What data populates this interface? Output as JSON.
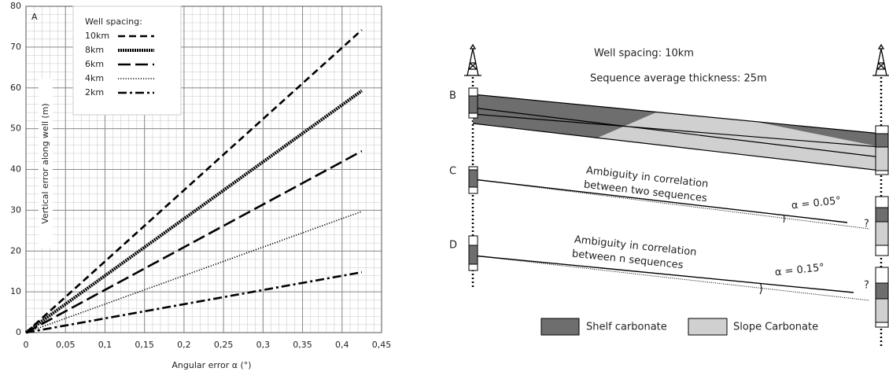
{
  "chart_data": {
    "type": "line",
    "panel_label": "A",
    "x_label": "Angular error  α (°)",
    "y_label": "Vertical error  along well (m)",
    "legend_title": "Well spacing:",
    "x": [
      0,
      0.425
    ],
    "series": [
      {
        "name": "10km",
        "color": "#000000",
        "values": [
          0,
          74.2
        ]
      },
      {
        "name": "8km",
        "color": "#000000",
        "values": [
          0,
          59.3
        ]
      },
      {
        "name": "6km",
        "color": "#000000",
        "values": [
          0,
          44.5
        ]
      },
      {
        "name": "4km",
        "color": "#000000",
        "values": [
          0,
          29.7
        ]
      },
      {
        "name": "2km",
        "color": "#000000",
        "values": [
          0,
          14.8
        ]
      }
    ],
    "xlim": [
      0,
      0.45
    ],
    "xticks": [
      0,
      {
        "value": 0.05,
        "label": "0,05"
      },
      {
        "value": 0.1,
        "label": "0,1"
      },
      {
        "value": 0.15,
        "label": "0,15"
      },
      {
        "value": 0.2,
        "label": "0,2"
      },
      {
        "value": 0.25,
        "label": "0,25"
      },
      {
        "value": 0.3,
        "label": "0,3"
      },
      {
        "value": 0.35,
        "label": "0,35"
      },
      {
        "value": 0.4,
        "label": "0,4"
      },
      {
        "value": 0.45,
        "label": "0,45"
      }
    ],
    "ylim": [
      0,
      80
    ],
    "yticks": [
      0,
      10,
      20,
      30,
      40,
      50,
      60,
      70,
      80
    ],
    "grid": true
  },
  "diagram": {
    "well_spacing": "Well spacing:  10km",
    "thickness": "Sequence average thickness:  25m",
    "panels": [
      {
        "label": "B"
      },
      {
        "label": "C",
        "annotation": [
          "Ambiguity in correlation",
          "between two sequences"
        ],
        "angle": "α = 0.05°",
        "question": "?"
      },
      {
        "label": "D",
        "annotation": [
          "Ambiguity in correlation",
          "between n sequences"
        ],
        "angle": "α = 0.15°",
        "question": "?"
      }
    ],
    "legend": [
      "Shelf carbonate",
      "Slope Carbonate"
    ]
  }
}
